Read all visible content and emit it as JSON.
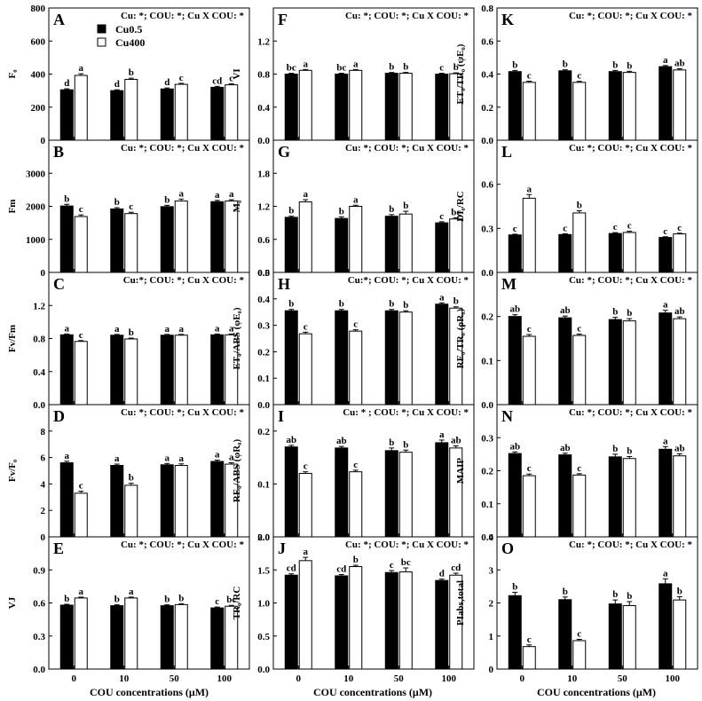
{
  "groups": [
    "Cu0.5",
    "Cu400"
  ],
  "group_colors": [
    "#000000",
    "#ffffff"
  ],
  "x_categories": [
    "0",
    "10",
    "50",
    "100"
  ],
  "x_axis_title": "COU concentrations (μM)",
  "chart_data": [
    {
      "type": "bar",
      "label": "A",
      "ylabel": "F₀",
      "ylim": [
        0,
        800
      ],
      "yticks": [
        "0",
        "200",
        "400",
        "600",
        "800"
      ],
      "stats": "Cu: *; COU: *; Cu X COU: *",
      "categories": [
        "0",
        "10",
        "50",
        "100"
      ],
      "series": [
        {
          "name": "Cu0.5",
          "values": [
            305,
            300,
            310,
            320
          ],
          "errors": [
            6,
            5,
            6,
            6
          ],
          "letters": [
            "d",
            "d",
            "d",
            "cd"
          ]
        },
        {
          "name": "Cu400",
          "values": [
            392,
            368,
            338,
            335
          ],
          "errors": [
            10,
            7,
            6,
            6
          ],
          "letters": [
            "a",
            "b",
            "c",
            "c"
          ]
        }
      ]
    },
    {
      "type": "bar",
      "label": "B",
      "ylabel": "Fm",
      "ylim": [
        0,
        4000
      ],
      "yticks": [
        "0",
        "1000",
        "2000",
        "3000"
      ],
      "stats": "Cu: *; COU: *; Cu X COU: *",
      "categories": [
        "0",
        "10",
        "50",
        "100"
      ],
      "series": [
        {
          "name": "Cu0.5",
          "values": [
            2010,
            1920,
            1990,
            2140
          ],
          "errors": [
            50,
            40,
            40,
            40
          ],
          "letters": [
            "b",
            "b",
            "b",
            "a"
          ]
        },
        {
          "name": "Cu400",
          "values": [
            1690,
            1780,
            2160,
            2160
          ],
          "errors": [
            50,
            40,
            60,
            40
          ],
          "letters": [
            "c",
            "c",
            "a",
            "a"
          ]
        }
      ]
    },
    {
      "type": "bar",
      "label": "C",
      "ylabel": "Fv/Fm",
      "ylim": [
        0,
        1.6
      ],
      "yticks": [
        "0.0",
        "0.4",
        "0.8",
        "1.2"
      ],
      "stats": "Cu:*; COU: *; Cu X COU: *",
      "categories": [
        "0",
        "10",
        "50",
        "100"
      ],
      "series": [
        {
          "name": "Cu0.5",
          "values": [
            0.845,
            0.84,
            0.84,
            0.845
          ],
          "errors": [
            0.01,
            0.01,
            0.01,
            0.01
          ],
          "letters": [
            "a",
            "a",
            "a",
            "a"
          ]
        },
        {
          "name": "Cu400",
          "values": [
            0.765,
            0.795,
            0.84,
            0.845
          ],
          "errors": [
            0.01,
            0.01,
            0.01,
            0.01
          ],
          "letters": [
            "c",
            "b",
            "a",
            "a"
          ]
        }
      ]
    },
    {
      "type": "bar",
      "label": "D",
      "ylabel": "Fv/F₀",
      "ylim": [
        0,
        10
      ],
      "yticks": [
        "0",
        "2",
        "4",
        "6",
        "8"
      ],
      "stats": "Cu: *; COU: *; Cu X COU: *",
      "categories": [
        "0",
        "10",
        "50",
        "100"
      ],
      "series": [
        {
          "name": "Cu0.5",
          "values": [
            5.6,
            5.4,
            5.45,
            5.7
          ],
          "errors": [
            0.12,
            0.1,
            0.1,
            0.1
          ],
          "letters": [
            "a",
            "a",
            "a",
            "a"
          ]
        },
        {
          "name": "Cu400",
          "values": [
            3.3,
            3.9,
            5.4,
            5.5
          ],
          "errors": [
            0.15,
            0.15,
            0.12,
            0.1
          ],
          "letters": [
            "c",
            "b",
            "a",
            "a"
          ]
        }
      ]
    },
    {
      "type": "bar",
      "label": "E",
      "ylabel": "VJ",
      "ylim": [
        0,
        1.2
      ],
      "yticks": [
        "0.0",
        "0.3",
        "0.6",
        "0.9"
      ],
      "stats": "Cu: *; COU: *; Cu X COU: *",
      "categories": [
        "0",
        "10",
        "50",
        "100"
      ],
      "series": [
        {
          "name": "Cu0.5",
          "values": [
            0.58,
            0.575,
            0.575,
            0.555
          ],
          "errors": [
            0.008,
            0.008,
            0.008,
            0.008
          ],
          "letters": [
            "b",
            "b",
            "b",
            "c"
          ]
        },
        {
          "name": "Cu400",
          "values": [
            0.645,
            0.645,
            0.585,
            0.57
          ],
          "errors": [
            0.008,
            0.008,
            0.008,
            0.008
          ],
          "letters": [
            "a",
            "a",
            "b",
            "bc"
          ]
        }
      ]
    },
    {
      "type": "bar",
      "label": "F",
      "ylabel": "VI",
      "ylim": [
        0,
        1.6
      ],
      "yticks": [
        "0.0",
        "0.4",
        "0.8",
        "1.2"
      ],
      "stats": "Cu: *; COU: *; Cu X COU: *",
      "categories": [
        "0",
        "10",
        "50",
        "100"
      ],
      "series": [
        {
          "name": "Cu0.5",
          "values": [
            0.8,
            0.8,
            0.81,
            0.8
          ],
          "errors": [
            0.01,
            0.01,
            0.01,
            0.01
          ],
          "letters": [
            "bc",
            "bc",
            "b",
            "c"
          ]
        },
        {
          "name": "Cu400",
          "values": [
            0.845,
            0.845,
            0.81,
            0.805
          ],
          "errors": [
            0.01,
            0.01,
            0.01,
            0.01
          ],
          "letters": [
            "a",
            "a",
            "b",
            "b"
          ]
        }
      ]
    },
    {
      "type": "bar",
      "label": "G",
      "ylabel": "M₀",
      "ylim": [
        0,
        2.4
      ],
      "yticks": [
        "0.0",
        "0.6",
        "1.2",
        "1.8"
      ],
      "stats": "Cu: *; COU: *; Cu X COU: *",
      "categories": [
        "0",
        "10",
        "50",
        "100"
      ],
      "series": [
        {
          "name": "Cu0.5",
          "values": [
            1.0,
            0.98,
            1.02,
            0.9
          ],
          "errors": [
            0.02,
            0.03,
            0.03,
            0.02
          ],
          "letters": [
            "b",
            "b",
            "b",
            "c"
          ]
        },
        {
          "name": "Cu400",
          "values": [
            1.28,
            1.2,
            1.06,
            0.97
          ],
          "errors": [
            0.04,
            0.02,
            0.05,
            0.02
          ],
          "letters": [
            "a",
            "a",
            "b",
            "bc"
          ]
        }
      ]
    },
    {
      "type": "bar",
      "label": "H",
      "ylabel": "ET₀/ABS (φE₀)",
      "ylim": [
        0,
        0.5
      ],
      "yticks": [
        "0.0",
        "0.1",
        "0.2",
        "0.3",
        "0.4",
        "0.5"
      ],
      "stats": "Cu:*; COU: *; Cu X COU: *",
      "categories": [
        "0",
        "10",
        "50",
        "100"
      ],
      "series": [
        {
          "name": "Cu0.5",
          "values": [
            0.355,
            0.355,
            0.355,
            0.38
          ],
          "errors": [
            0.005,
            0.005,
            0.005,
            0.005
          ],
          "letters": [
            "b",
            "b",
            "b",
            "a"
          ]
        },
        {
          "name": "Cu400",
          "values": [
            0.268,
            0.278,
            0.35,
            0.365
          ],
          "errors": [
            0.006,
            0.005,
            0.005,
            0.005
          ],
          "letters": [
            "c",
            "c",
            "b",
            "b"
          ]
        }
      ]
    },
    {
      "type": "bar",
      "label": "I",
      "ylabel": "RE₀/ABS (φR₀)",
      "ylim": [
        0,
        0.25
      ],
      "yticks": [
        "0.0",
        "0.1",
        "0.2"
      ],
      "stats": "Cu: * ; COU: *; Cu X COU: *",
      "categories": [
        "0",
        "10",
        "50",
        "100"
      ],
      "series": [
        {
          "name": "Cu0.5",
          "values": [
            0.17,
            0.168,
            0.163,
            0.178
          ],
          "errors": [
            0.003,
            0.003,
            0.005,
            0.005
          ],
          "letters": [
            "ab",
            "ab",
            "b",
            "a"
          ]
        },
        {
          "name": "Cu400",
          "values": [
            0.12,
            0.123,
            0.16,
            0.168
          ],
          "errors": [
            0.003,
            0.003,
            0.004,
            0.004
          ],
          "letters": [
            "c",
            "c",
            "b",
            "ab"
          ]
        }
      ]
    },
    {
      "type": "bar",
      "label": "J",
      "ylabel": "TR₀/RC",
      "ylim": [
        0,
        2.0
      ],
      "yticks": [
        "0.0",
        "0.5",
        "1.0",
        "1.5",
        "2.0"
      ],
      "stats": "Cu: *; COU: *; Cu X COU: *",
      "categories": [
        "0",
        "10",
        "50",
        "100"
      ],
      "series": [
        {
          "name": "Cu0.5",
          "values": [
            1.42,
            1.41,
            1.46,
            1.34
          ],
          "errors": [
            0.02,
            0.02,
            0.03,
            0.02
          ],
          "letters": [
            "cd",
            "cd",
            "c",
            "d"
          ]
        },
        {
          "name": "Cu400",
          "values": [
            1.64,
            1.55,
            1.47,
            1.42
          ],
          "errors": [
            0.05,
            0.02,
            0.06,
            0.03
          ],
          "letters": [
            "a",
            "b",
            "bc",
            "cd"
          ]
        }
      ]
    },
    {
      "type": "bar",
      "label": "K",
      "ylabel": "ET₀/TR₀ (ψE₀)",
      "ylim": [
        0,
        0.8
      ],
      "yticks": [
        "0.0",
        "0.2",
        "0.4",
        "0.6",
        "0.8"
      ],
      "stats": "Cu: *; COU: *; Cu X COU: *",
      "categories": [
        "0",
        "10",
        "50",
        "100"
      ],
      "series": [
        {
          "name": "Cu0.5",
          "values": [
            0.415,
            0.42,
            0.415,
            0.445
          ],
          "errors": [
            0.007,
            0.006,
            0.007,
            0.007
          ],
          "letters": [
            "b",
            "b",
            "b",
            "a"
          ]
        },
        {
          "name": "Cu400",
          "values": [
            0.35,
            0.35,
            0.41,
            0.425
          ],
          "errors": [
            0.007,
            0.006,
            0.007,
            0.007
          ],
          "letters": [
            "c",
            "c",
            "b",
            "ab"
          ]
        }
      ]
    },
    {
      "type": "bar",
      "label": "L",
      "ylabel": "DI₀/RC",
      "ylim": [
        0,
        0.9
      ],
      "yticks": [
        "0.0",
        "0.3",
        "0.6"
      ],
      "stats": "Cu: *; COU: *; Cu X COU: *",
      "categories": [
        "0",
        "10",
        "50",
        "100"
      ],
      "series": [
        {
          "name": "Cu0.5",
          "values": [
            0.255,
            0.258,
            0.265,
            0.238
          ],
          "errors": [
            0.005,
            0.005,
            0.006,
            0.005
          ],
          "letters": [
            "c",
            "c",
            "c",
            "c"
          ]
        },
        {
          "name": "Cu400",
          "values": [
            0.505,
            0.405,
            0.272,
            0.262
          ],
          "errors": [
            0.025,
            0.015,
            0.008,
            0.005
          ],
          "letters": [
            "a",
            "b",
            "c",
            "c"
          ]
        }
      ]
    },
    {
      "type": "bar",
      "label": "M",
      "ylabel": "RE₀/TR₀ (ρR₀)",
      "ylim": [
        0,
        0.3
      ],
      "yticks": [
        "0.0",
        "0.1",
        "0.2"
      ],
      "stats": "Cu: *; COU: *; Cu X COU: *",
      "categories": [
        "0",
        "10",
        "50",
        "100"
      ],
      "series": [
        {
          "name": "Cu0.5",
          "values": [
            0.2,
            0.197,
            0.193,
            0.208
          ],
          "errors": [
            0.004,
            0.004,
            0.005,
            0.006
          ],
          "letters": [
            "ab",
            "ab",
            "b",
            "a"
          ]
        },
        {
          "name": "Cu400",
          "values": [
            0.155,
            0.157,
            0.19,
            0.195
          ],
          "errors": [
            0.004,
            0.003,
            0.005,
            0.004
          ],
          "letters": [
            "c",
            "c",
            "b",
            "ab"
          ]
        }
      ]
    },
    {
      "type": "bar",
      "label": "N",
      "ylabel": "MAIP",
      "ylim": [
        0,
        0.4
      ],
      "yticks": [
        "0.0",
        "0.1",
        "0.2",
        "0.3"
      ],
      "stats": "Cu: *; COU: *; Cu X COU: *",
      "categories": [
        "0",
        "10",
        "50",
        "100"
      ],
      "series": [
        {
          "name": "Cu0.5",
          "values": [
            0.252,
            0.248,
            0.242,
            0.265
          ],
          "errors": [
            0.005,
            0.005,
            0.008,
            0.008
          ],
          "letters": [
            "ab",
            "ab",
            "b",
            "a"
          ]
        },
        {
          "name": "Cu400",
          "values": [
            0.185,
            0.187,
            0.237,
            0.245
          ],
          "errors": [
            0.005,
            0.004,
            0.006,
            0.006
          ],
          "letters": [
            "c",
            "c",
            "b",
            "ab"
          ]
        }
      ]
    },
    {
      "type": "bar",
      "label": "O",
      "ylabel": "PIabs,total",
      "ylim": [
        0,
        4
      ],
      "yticks": [
        "0",
        "1",
        "2",
        "3",
        "4"
      ],
      "stats": "Cu: *; COU: *; Cu X COU: *",
      "categories": [
        "0",
        "10",
        "50",
        "100"
      ],
      "series": [
        {
          "name": "Cu0.5",
          "values": [
            2.22,
            2.1,
            1.97,
            2.58
          ],
          "errors": [
            0.1,
            0.08,
            0.12,
            0.15
          ],
          "letters": [
            "b",
            "b",
            "b",
            "a"
          ]
        },
        {
          "name": "Cu400",
          "values": [
            0.68,
            0.86,
            1.92,
            2.09
          ],
          "errors": [
            0.05,
            0.04,
            0.12,
            0.1
          ],
          "letters": [
            "c",
            "c",
            "b",
            "b"
          ]
        }
      ]
    }
  ]
}
